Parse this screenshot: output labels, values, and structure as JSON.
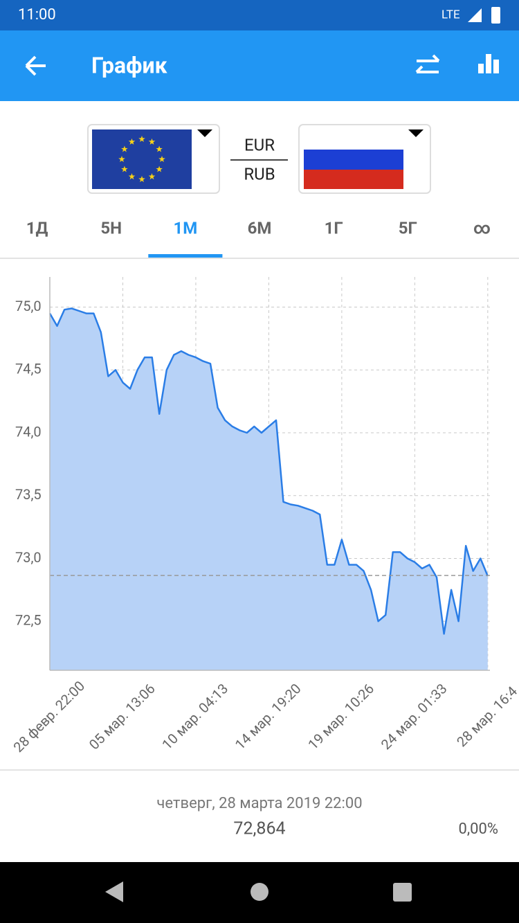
{
  "status_bar": {
    "time": "11:00",
    "network": "LTE"
  },
  "app_bar": {
    "title": "График"
  },
  "currency": {
    "base": "EUR",
    "quote": "RUB"
  },
  "tabs": {
    "items": [
      "1Д",
      "5Н",
      "1М",
      "6М",
      "1Г",
      "5Г",
      "∞"
    ],
    "selected": 2
  },
  "chart_data": {
    "type": "area",
    "color": "#2a7de6",
    "fill": "#b7d2f7",
    "values": [
      74.95,
      74.85,
      74.98,
      74.99,
      74.97,
      74.95,
      74.95,
      74.8,
      74.45,
      74.5,
      74.4,
      74.35,
      74.5,
      74.6,
      74.6,
      74.15,
      74.5,
      74.62,
      74.65,
      74.62,
      74.6,
      74.57,
      74.55,
      74.2,
      74.1,
      74.05,
      74.02,
      74.0,
      74.05,
      74.0,
      74.05,
      74.1,
      73.45,
      73.43,
      73.42,
      73.4,
      73.38,
      73.35,
      72.95,
      72.95,
      73.15,
      72.95,
      72.95,
      72.9,
      72.75,
      72.5,
      72.55,
      73.05,
      73.05,
      73.0,
      72.97,
      72.92,
      72.95,
      72.85,
      72.4,
      72.75,
      72.5,
      73.1,
      72.9,
      73.0,
      72.86
    ],
    "xlim": [
      0,
      60.3
    ],
    "xticks": [
      {
        "value": 0,
        "label": "28 февр. 22:00"
      },
      {
        "value": 10,
        "label": "05 мар. 13:06"
      },
      {
        "value": 20,
        "label": "10 мар. 04:13"
      },
      {
        "value": 30,
        "label": "14 мар. 19:20"
      },
      {
        "value": 40,
        "label": "19 мар. 10:26"
      },
      {
        "value": 50,
        "label": "24 мар. 01:33"
      },
      {
        "value": 60,
        "label": "28 мар. 16:4"
      }
    ],
    "ylim": [
      72.11,
      75.24
    ],
    "yticks": [
      {
        "value": 72.5,
        "label": "72,5"
      },
      {
        "value": 73.0,
        "label": "73,0"
      },
      {
        "value": 73.5,
        "label": "73,5"
      },
      {
        "value": 74.0,
        "label": "74,0"
      },
      {
        "value": 74.5,
        "label": "74,5"
      },
      {
        "value": 75.0,
        "label": "75,0"
      }
    ],
    "reference_line": 72.864,
    "grid": true
  },
  "footer": {
    "date": "четверг, 28 марта 2019 22:00",
    "value": "72,864",
    "change": "0,00%"
  }
}
